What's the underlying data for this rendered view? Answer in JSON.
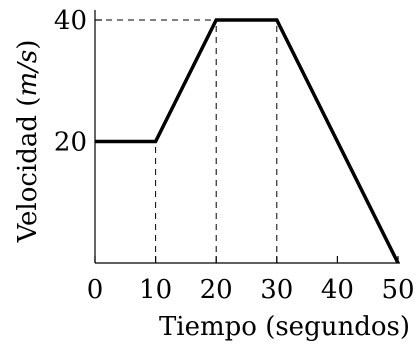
{
  "chart_data": {
    "type": "line",
    "xlabel": "Tiempo (segundos)",
    "ylabel_prefix": "Velocidad (",
    "ylabel_unit": "m/s",
    "ylabel_suffix": ")",
    "xlim": [
      0,
      50
    ],
    "ylim": [
      0,
      40
    ],
    "x_ticks": [
      0,
      10,
      20,
      30,
      40,
      50
    ],
    "x_tick_labels": [
      "0",
      "10",
      "20",
      "30",
      "40",
      "50"
    ],
    "y_ticks": [
      20,
      40
    ],
    "y_tick_labels": [
      "20",
      "40"
    ],
    "grid": false,
    "series": [
      {
        "x": [
          0,
          10,
          20,
          30,
          50
        ],
        "y": [
          20,
          20,
          40,
          40,
          0
        ],
        "color": "#000000"
      }
    ],
    "reference_lines": [
      {
        "from": [
          10,
          0
        ],
        "to": [
          10,
          20
        ]
      },
      {
        "from": [
          20,
          0
        ],
        "to": [
          20,
          40
        ]
      },
      {
        "from": [
          30,
          0
        ],
        "to": [
          30,
          40
        ]
      },
      {
        "from": [
          0,
          40
        ],
        "to": [
          20,
          40
        ]
      }
    ]
  }
}
